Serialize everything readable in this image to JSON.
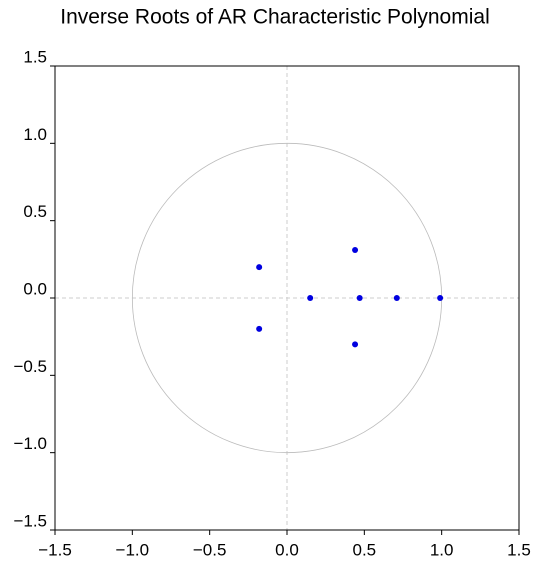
{
  "chart_data": {
    "type": "scatter",
    "title": "Inverse Roots of AR Characteristic Polynomial",
    "x": [
      -0.18,
      -0.18,
      0.15,
      0.44,
      0.44,
      0.47,
      0.71,
      0.99
    ],
    "values": [
      0.2,
      -0.2,
      0,
      0.31,
      -0.3,
      0,
      0,
      0
    ],
    "color": "#0000e0",
    "xlim": [
      -1.5,
      1.5
    ],
    "ylim": [
      -1.5,
      1.5
    ],
    "xticks": [
      {
        "value": -1.5,
        "label": "−1.5"
      },
      {
        "value": -1,
        "label": "−1.0"
      },
      {
        "value": -0.5,
        "label": "−0.5"
      },
      {
        "value": 0,
        "label": "0.0"
      },
      0.5,
      {
        "value": 1,
        "label": "1.0"
      },
      1.5
    ],
    "yticks": [
      {
        "value": -1.5,
        "label": "−1.5"
      },
      {
        "value": -1,
        "label": "−1.0"
      },
      {
        "value": -0.5,
        "label": "−0.5"
      },
      {
        "value": 0,
        "label": "0.0"
      },
      0.5,
      {
        "value": 1,
        "label": "1.0"
      },
      1.5
    ],
    "unit_circle": true,
    "zero_lines": true
  }
}
